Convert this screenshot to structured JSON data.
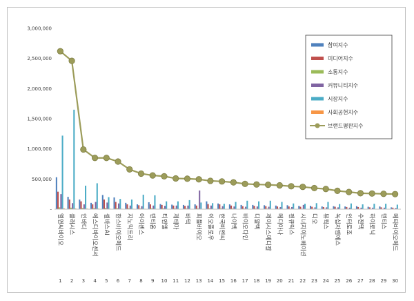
{
  "chart_data": {
    "type": "bar",
    "title": "",
    "xlabel": "",
    "ylabel": "",
    "ylim": [
      0,
      3000000
    ],
    "yticks": [
      0,
      500000,
      1000000,
      1500000,
      2000000,
      2500000,
      3000000
    ],
    "ytick_labels": [
      "-",
      "500,000",
      "1,000,000",
      "1,500,000",
      "2,000,000",
      "2,500,000",
      "3,000,000"
    ],
    "grid": false,
    "legend_position": "top-right",
    "categories": [
      "엘앤씨바이오",
      "클래시스",
      "인바디",
      "에스디바이오센서",
      "셀바스AI",
      "한스바이오메드",
      "지노믹트리",
      "아이센스",
      "덴티움",
      "티앤엘",
      "제테마",
      "바텍",
      "피플바이오",
      "이오플로우",
      "한국비엔씨",
      "나이벡",
      "바이오다인",
      "디알텍",
      "제이시스메디칼",
      "메디아나",
      "젠큐릭스",
      "시너지이노베이션",
      "디오",
      "뷰웍스",
      "녹십자엠에스",
      "인터로조",
      "수젠텍",
      "하이로닉",
      "덴티스",
      "메타바이오메드"
    ],
    "ranks": [
      "1",
      "2",
      "3",
      "4",
      "5",
      "6",
      "7",
      "8",
      "9",
      "10",
      "11",
      "12",
      "13",
      "14",
      "15",
      "16",
      "17",
      "18",
      "19",
      "20",
      "21",
      "22",
      "23",
      "24",
      "25",
      "26",
      "27",
      "28",
      "29",
      "30"
    ],
    "series": [
      {
        "name": "참여지수",
        "kind": "bar",
        "color": "#4f81bd",
        "values": [
          530000,
          205000,
          160000,
          105000,
          235000,
          195000,
          105000,
          80000,
          115000,
          85000,
          75000,
          70000,
          80000,
          130000,
          95000,
          80000,
          70000,
          70000,
          65000,
          60000,
          65000,
          55000,
          55000,
          45000,
          50000,
          45000,
          50000,
          40000,
          45000,
          30000
        ]
      },
      {
        "name": "미디어지수",
        "kind": "bar",
        "color": "#c0504d",
        "values": [
          290000,
          160000,
          130000,
          80000,
          160000,
          120000,
          80000,
          65000,
          80000,
          70000,
          60000,
          55000,
          60000,
          85000,
          80000,
          60000,
          50000,
          55000,
          50000,
          45000,
          45000,
          40000,
          40000,
          35000,
          40000,
          35000,
          35000,
          30000,
          30000,
          25000
        ]
      },
      {
        "name": "소통지수",
        "kind": "bar",
        "color": "#9bbb59",
        "values": [
          30000,
          25000,
          20000,
          18000,
          20000,
          18000,
          15000,
          12000,
          15000,
          14000,
          12000,
          12000,
          12000,
          15000,
          14000,
          12000,
          10000,
          10000,
          10000,
          9000,
          9000,
          8000,
          8000,
          8000,
          8000,
          7000,
          7000,
          6000,
          6000,
          6000
        ]
      },
      {
        "name": "커뮤니티지수",
        "kind": "bar",
        "color": "#8064a2",
        "values": [
          250000,
          100000,
          80000,
          120000,
          110000,
          95000,
          60000,
          50000,
          60000,
          55000,
          60000,
          60000,
          310000,
          60000,
          50000,
          45000,
          40000,
          45000,
          40000,
          35000,
          35000,
          70000,
          30000,
          30000,
          30000,
          25000,
          25000,
          25000,
          25000,
          20000
        ]
      },
      {
        "name": "시장지수",
        "kind": "bar",
        "color": "#4bacc6",
        "values": [
          1220000,
          1650000,
          390000,
          430000,
          200000,
          170000,
          160000,
          240000,
          230000,
          130000,
          130000,
          150000,
          110000,
          100000,
          90000,
          120000,
          140000,
          130000,
          140000,
          120000,
          95000,
          90000,
          100000,
          120000,
          85000,
          95000,
          80000,
          90000,
          90000,
          75000
        ]
      },
      {
        "name": "사회공헌지수",
        "kind": "bar",
        "color": "#f79646",
        "values": [
          15000,
          12000,
          10000,
          10000,
          8000,
          8000,
          7000,
          7000,
          7000,
          6000,
          6000,
          6000,
          6000,
          5000,
          5000,
          5000,
          5000,
          5000,
          5000,
          4000,
          4000,
          4000,
          4000,
          4000,
          4000,
          3000,
          3000,
          3000,
          3000,
          3000
        ]
      },
      {
        "name": "브랜드평판지수",
        "kind": "line",
        "color": "#9c9c5a",
        "values": [
          2620000,
          2460000,
          990000,
          850000,
          850000,
          790000,
          660000,
          590000,
          560000,
          545000,
          510000,
          505000,
          495000,
          470000,
          460000,
          445000,
          420000,
          410000,
          405000,
          395000,
          380000,
          370000,
          350000,
          335000,
          305000,
          285000,
          265000,
          260000,
          255000,
          250000
        ]
      }
    ]
  }
}
